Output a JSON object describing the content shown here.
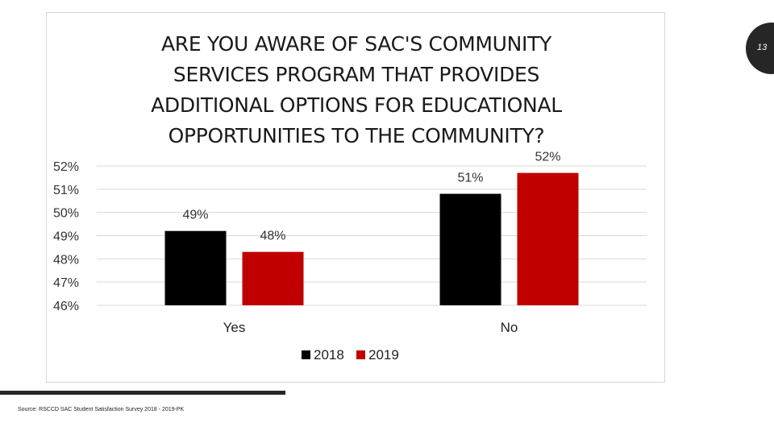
{
  "slide": {
    "number": "13",
    "source": "Source: RSCCD SAC Student Satisfaction Survey 2018 - 2019-PK"
  },
  "chart_data": {
    "type": "bar",
    "title": "ARE YOU AWARE OF SAC'S COMMUNITY\nSERVICES PROGRAM THAT PROVIDES\nADDITIONAL OPTIONS FOR EDUCATIONAL\nOPPORTUNITIES TO THE COMMUNITY?",
    "xlabel": "",
    "ylabel": "",
    "categories": [
      "Yes",
      "No"
    ],
    "series": [
      {
        "name": "2018",
        "color": "#000000",
        "values": [
          49.2,
          50.8
        ],
        "labels": [
          "49%",
          "51%"
        ]
      },
      {
        "name": "2019",
        "color": "#c00000",
        "values": [
          48.3,
          51.7
        ],
        "labels": [
          "48%",
          "52%"
        ]
      }
    ],
    "ylim": [
      46,
      52
    ],
    "yticks": [
      46,
      47,
      48,
      49,
      50,
      51,
      52
    ],
    "ytick_labels": [
      "46%",
      "47%",
      "48%",
      "49%",
      "50%",
      "51%",
      "52%"
    ],
    "grid": true,
    "legend": "bottom"
  }
}
